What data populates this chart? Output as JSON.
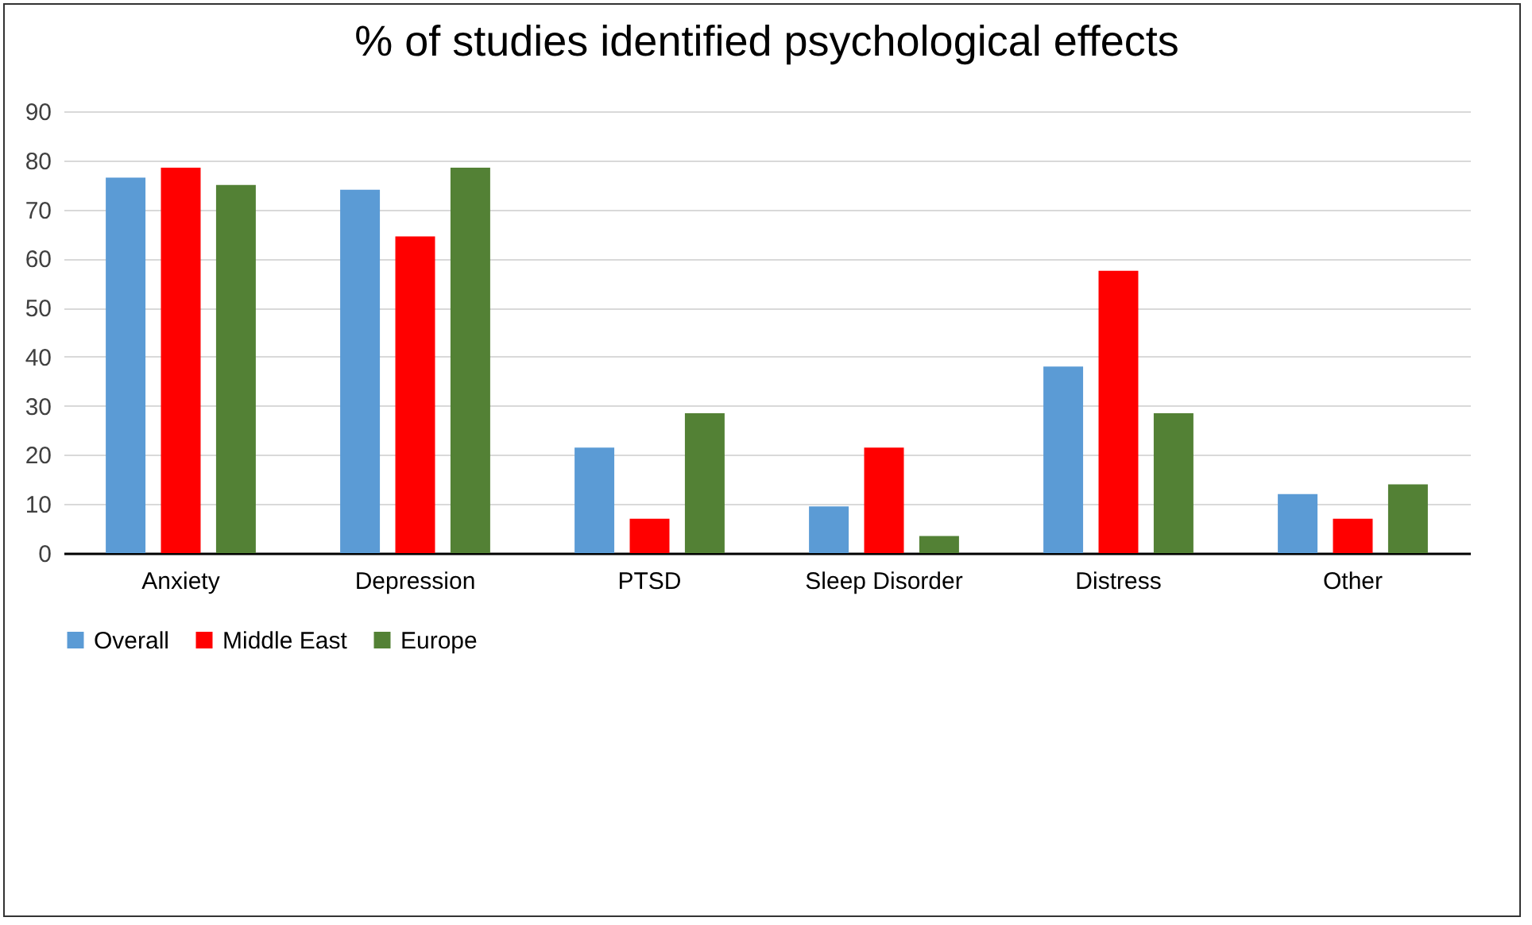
{
  "chart_data": {
    "type": "bar",
    "title": "% of studies identified psychological effects",
    "categories": [
      "Anxiety",
      "Depression",
      "PTSD",
      "Sleep Disorder",
      "Distress",
      "Other"
    ],
    "series": [
      {
        "name": "Overall",
        "color": "#5b9bd5",
        "values": [
          76.5,
          74,
          21.5,
          9.5,
          38,
          12
        ]
      },
      {
        "name": "Middle East",
        "color": "#ff0000",
        "values": [
          78.5,
          64.5,
          7,
          21.5,
          57.5,
          7
        ]
      },
      {
        "name": "Europe",
        "color": "#538135",
        "values": [
          75,
          78.5,
          28.5,
          3.5,
          28.5,
          14
        ]
      }
    ],
    "ylim": [
      0,
      90
    ],
    "yticks": [
      0,
      10,
      20,
      30,
      40,
      50,
      60,
      70,
      80,
      90
    ],
    "grid": "y",
    "legend": "bottom"
  }
}
